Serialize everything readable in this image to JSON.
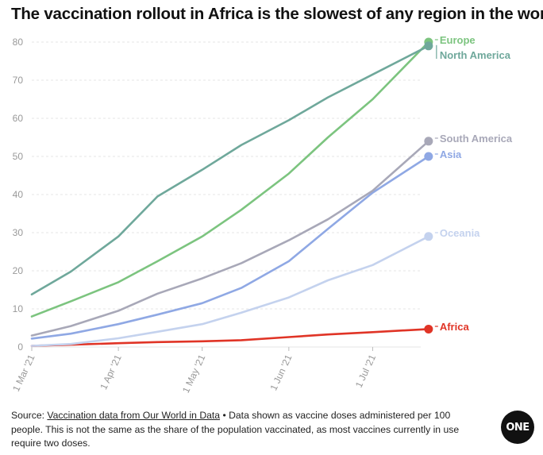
{
  "title": "The vaccination rollout in Africa is the slowest of any region in the world",
  "footer": {
    "source_prefix": "Source: ",
    "source_link": "Vaccination data from Our World in Data",
    "note": " • Data shown as vaccine doses administered per 100 people. This is not the same as the share of the population vaccinated, as most vaccines currently in use require two doses."
  },
  "logo": "ONE",
  "colors": {
    "europe": "#7cc47f",
    "north_america": "#6fa89b",
    "south_america": "#a8a8b8",
    "asia": "#8fa8e4",
    "oceania": "#c4d2ee",
    "africa": "#e03426",
    "tick_text": "#999999",
    "grid": "#e6e6e6"
  },
  "chart_data": {
    "type": "line",
    "x_ticks": [
      "1 Mar '21",
      "1 Apr '21",
      "1 May '21",
      "1 Jun '21",
      "1 Jul '21"
    ],
    "x_range": [
      "2021-03-01",
      "2021-07-21"
    ],
    "y_ticks": [
      0,
      10,
      20,
      30,
      40,
      50,
      60,
      70,
      80
    ],
    "ylim": [
      0,
      80
    ],
    "grid": true,
    "legend": "end-of-line labels",
    "series": [
      {
        "key": "north_america",
        "name": "North America",
        "x": [
          "2021-03-01",
          "2021-03-15",
          "2021-04-01",
          "2021-04-15",
          "2021-05-01",
          "2021-05-15",
          "2021-06-01",
          "2021-06-15",
          "2021-07-01",
          "2021-07-21"
        ],
        "values": [
          13.8,
          19.8,
          29,
          39.5,
          46.5,
          53,
          59.5,
          65.5,
          71.5,
          79
        ]
      },
      {
        "key": "europe",
        "name": "Europe",
        "x": [
          "2021-03-01",
          "2021-03-15",
          "2021-04-01",
          "2021-04-15",
          "2021-05-01",
          "2021-05-15",
          "2021-06-01",
          "2021-06-15",
          "2021-07-01",
          "2021-07-21"
        ],
        "values": [
          8,
          12,
          17,
          22.5,
          29,
          36,
          45.5,
          55,
          65,
          80
        ]
      },
      {
        "key": "south_america",
        "name": "South America",
        "x": [
          "2021-03-01",
          "2021-03-15",
          "2021-04-01",
          "2021-04-15",
          "2021-05-01",
          "2021-05-15",
          "2021-06-01",
          "2021-06-15",
          "2021-07-01",
          "2021-07-21"
        ],
        "values": [
          3,
          5.5,
          9.5,
          14,
          18,
          22,
          28,
          33.5,
          41,
          54
        ]
      },
      {
        "key": "asia",
        "name": "Asia",
        "x": [
          "2021-03-01",
          "2021-03-15",
          "2021-04-01",
          "2021-04-15",
          "2021-05-01",
          "2021-05-15",
          "2021-06-01",
          "2021-06-15",
          "2021-07-01",
          "2021-07-21"
        ],
        "values": [
          2.2,
          3.5,
          6,
          8.5,
          11.5,
          15.5,
          22.5,
          31,
          40.5,
          50
        ]
      },
      {
        "key": "oceania",
        "name": "Oceania",
        "x": [
          "2021-03-01",
          "2021-03-15",
          "2021-04-01",
          "2021-04-15",
          "2021-05-01",
          "2021-05-15",
          "2021-06-01",
          "2021-06-15",
          "2021-07-01",
          "2021-07-21"
        ],
        "values": [
          0.3,
          0.8,
          2.3,
          4,
          6,
          9,
          13,
          17.5,
          21.5,
          29
        ]
      },
      {
        "key": "africa",
        "name": "Africa",
        "x": [
          "2021-03-01",
          "2021-03-15",
          "2021-04-01",
          "2021-04-15",
          "2021-05-01",
          "2021-05-15",
          "2021-06-01",
          "2021-06-15",
          "2021-07-01",
          "2021-07-21"
        ],
        "values": [
          0.3,
          0.6,
          1,
          1.3,
          1.5,
          1.8,
          2.6,
          3.3,
          3.9,
          4.7
        ]
      }
    ]
  }
}
